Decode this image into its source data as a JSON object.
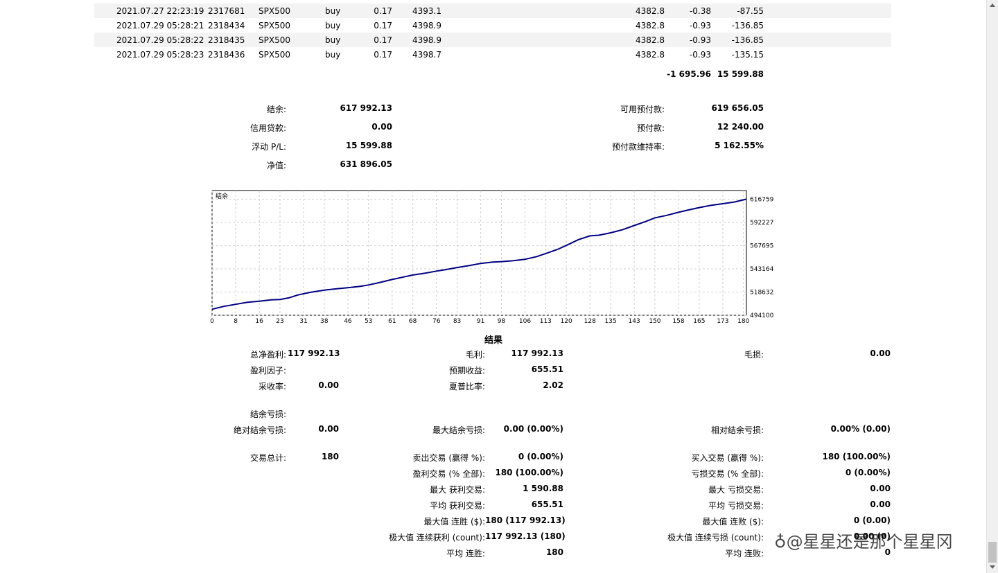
{
  "trades": [
    {
      "time": "2021.07.27 22:23:19",
      "ticket": "2317681",
      "symbol": "SPX500",
      "type": "buy",
      "size": "0.17",
      "price": "4393.1",
      "close_price": "4382.8",
      "commission": "-0.38",
      "profit": "-87.55"
    },
    {
      "time": "2021.07.29 05:28:21",
      "ticket": "2318434",
      "symbol": "SPX500",
      "type": "buy",
      "size": "0.17",
      "price": "4398.9",
      "close_price": "4382.8",
      "commission": "-0.93",
      "profit": "-136.85"
    },
    {
      "time": "2021.07.29 05:28:22",
      "ticket": "2318435",
      "symbol": "SPX500",
      "type": "buy",
      "size": "0.17",
      "price": "4398.9",
      "close_price": "4382.8",
      "commission": "-0.93",
      "profit": "-136.85"
    },
    {
      "time": "2021.07.29 05:28:23",
      "ticket": "2318436",
      "symbol": "SPX500",
      "type": "buy",
      "size": "0.17",
      "price": "4398.7",
      "close_price": "4382.8",
      "commission": "-0.93",
      "profit": "-135.15"
    }
  ],
  "totals": {
    "commission": "-1 695.96",
    "profit": "15 599.88"
  },
  "account": {
    "balance_label": "结余:",
    "balance": "617 992.13",
    "credit_label": "信用贷款:",
    "credit": "0.00",
    "floating_label": "浮动 P/L:",
    "floating": "15 599.88",
    "equity_label": "净值:",
    "equity": "631 896.05",
    "free_margin_label": "可用预付款:",
    "free_margin": "619 656.05",
    "margin_label": "预付款:",
    "margin": "12 240.00",
    "margin_level_label": "预付款维持率:",
    "margin_level": "5 162.55%"
  },
  "chart_data": {
    "type": "line",
    "title": "结余",
    "x_ticks": [
      "0",
      "8",
      "16",
      "23",
      "31",
      "38",
      "46",
      "53",
      "61",
      "68",
      "76",
      "83",
      "91",
      "98",
      "106",
      "113",
      "120",
      "128",
      "135",
      "143",
      "150",
      "158",
      "165",
      "173",
      "180"
    ],
    "y_ticks": [
      "616759",
      "592227",
      "567695",
      "543164",
      "518632",
      "494100"
    ],
    "ylim": [
      494100,
      626000
    ],
    "xlim": [
      0,
      181
    ],
    "grid": true,
    "x": [
      0,
      4,
      8,
      12,
      16,
      20,
      23,
      26,
      29,
      33,
      38,
      42,
      46,
      50,
      53,
      57,
      61,
      65,
      68,
      72,
      76,
      80,
      83,
      87,
      91,
      95,
      98,
      102,
      106,
      110,
      113,
      117,
      120,
      124,
      128,
      131,
      135,
      139,
      143,
      147,
      150,
      154,
      158,
      161,
      165,
      169,
      173,
      177,
      181
    ],
    "y": [
      500500,
      503500,
      505700,
      507800,
      509000,
      510400,
      510800,
      512500,
      515500,
      518200,
      520600,
      522000,
      523300,
      524600,
      526100,
      528900,
      531900,
      534600,
      536700,
      538500,
      540800,
      542800,
      544600,
      546600,
      548900,
      550300,
      550800,
      551800,
      553200,
      556200,
      559400,
      563700,
      568000,
      573900,
      578100,
      578700,
      581300,
      584500,
      589000,
      593500,
      597100,
      599800,
      603000,
      605200,
      608000,
      610300,
      612100,
      613900,
      616900
    ],
    "color": "#000080"
  },
  "results": {
    "title": "结果",
    "net_profit_label": "总净盈利:",
    "net_profit": "117 992.13",
    "gross_profit_label": "毛利:",
    "gross_profit": "117 992.13",
    "gross_loss_label": "毛损:",
    "gross_loss": "0.00",
    "profit_factor_label": "盈利因子:",
    "expected_payoff_label": "预期收益:",
    "expected_payoff": "655.51",
    "recovery_label": "采收率:",
    "recovery": "0.00",
    "sharpe_label": "夏普比率:",
    "sharpe": "2.02",
    "drawdown_header": "结余亏损:",
    "abs_dd_label": "绝对结余亏损:",
    "abs_dd": "0.00",
    "max_dd_label": "最大结余亏损:",
    "max_dd": "0.00 (0.00%)",
    "rel_dd_label": "相对结余亏损:",
    "rel_dd": "0.00% (0.00)",
    "total_trades_label": "交易总计:",
    "total_trades": "180",
    "short_label": "卖出交易 (赢得 %):",
    "short": "0 (0.00%)",
    "long_label": "买入交易 (赢得 %):",
    "long": "180 (100.00%)",
    "win_label": "盈利交易 (% 全部):",
    "win": "180 (100.00%)",
    "loss_label": "亏损交易 (% 全部):",
    "loss": "0 (0.00%)",
    "largest_win_label": "最大 获利交易:",
    "largest_win": "1 590.88",
    "largest_loss_label": "最大 亏损交易:",
    "largest_loss": "0.00",
    "avg_win_label": "平均 获利交易:",
    "avg_win": "655.51",
    "avg_loss_label": "平均 亏损交易:",
    "avg_loss": "0.00",
    "max_consec_wins_label": "最大值 连胜 ($):",
    "max_consec_wins": "180 (117 992.13)",
    "max_consec_losses_label": "最大值 连败 ($):",
    "max_consec_losses": "0 (0.00)",
    "max_consec_profit_label": "极大值 连续获利 (count):",
    "max_consec_profit": "117 992.13 (180)",
    "max_consec_loss_label": "极大值 连续亏损 (count):",
    "max_consec_loss": "0.00 (0)",
    "avg_consec_wins_label": "平均 连胜:",
    "avg_consec_wins": "180",
    "avg_consec_losses_label": "平均 连败:",
    "avg_consec_losses": "0"
  },
  "watermark": "@星星还是那个星星冈"
}
